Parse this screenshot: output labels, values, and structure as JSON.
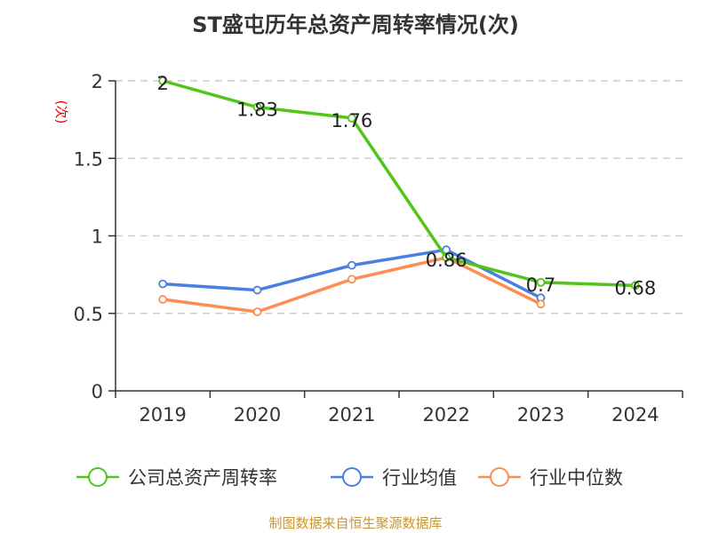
{
  "chart_data": {
    "type": "line",
    "title": "ST盛屯历年总资产周转率情况(次)",
    "ylabel": "(次)",
    "ylim": [
      0,
      2
    ],
    "yticks": [
      "0",
      "0.5",
      "1",
      "1.5",
      "2"
    ],
    "grid": true,
    "legend_position": "bottom",
    "categories": [
      "2019",
      "2020",
      "2021",
      "2022",
      "2023",
      "2024"
    ],
    "series": [
      {
        "name": "公司总资产周转率",
        "color": "#52c41a",
        "values": [
          2,
          1.83,
          1.76,
          0.86,
          0.7,
          0.68
        ],
        "labels": [
          "2",
          "1.83",
          "1.76",
          "0.86",
          "0.7",
          "0.68"
        ]
      },
      {
        "name": "行业均值",
        "color": "#4a7fe0",
        "values": [
          0.69,
          0.65,
          0.81,
          0.91,
          0.6,
          null
        ]
      },
      {
        "name": "行业中位数",
        "color": "#ff8c55",
        "values": [
          0.59,
          0.51,
          0.72,
          0.86,
          0.56,
          null
        ]
      }
    ]
  },
  "footer": "制图数据来自恒生聚源数据库"
}
